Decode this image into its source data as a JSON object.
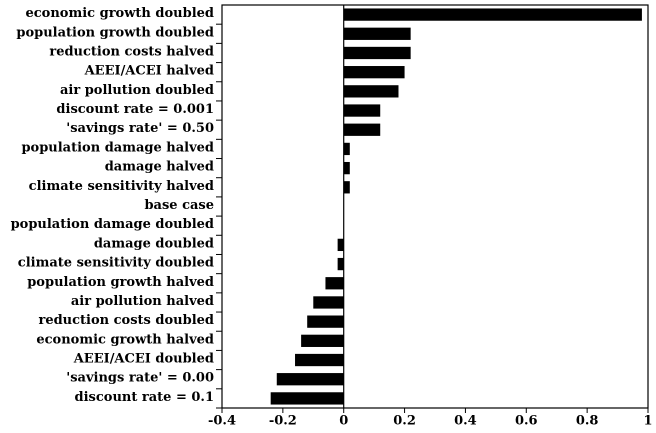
{
  "chart_data": {
    "type": "barh",
    "categories": [
      "economic growth doubled",
      "population growth doubled",
      "reduction costs halved",
      "AEEI/ACEI halved",
      "air pollution doubled",
      "discount rate = 0.001",
      "'savings rate' = 0.50",
      "population damage halved",
      "damage halved",
      "climate sensitivity halved",
      "base case",
      "population damage doubled",
      "damage doubled",
      "climate sensitivity doubled",
      "population growth halved",
      "air pollution halved",
      "reduction costs doubled",
      "economic growth halved",
      "AEEI/ACEI doubled",
      "'savings rate' = 0.00",
      "discount rate = 0.1"
    ],
    "values": [
      0.98,
      0.22,
      0.22,
      0.2,
      0.18,
      0.12,
      0.12,
      0.02,
      0.02,
      0.02,
      0,
      0,
      -0.02,
      -0.02,
      -0.06,
      -0.1,
      -0.12,
      -0.14,
      -0.16,
      -0.22,
      -0.24
    ],
    "color": "#000000",
    "xlim": [
      -0.4,
      1
    ],
    "xticks": [
      -0.4,
      -0.2,
      0,
      0.2,
      0.4,
      0.6,
      0.8,
      1
    ]
  }
}
